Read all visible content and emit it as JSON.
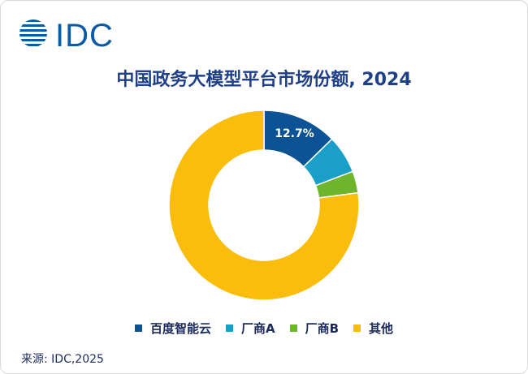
{
  "header": {
    "logo_text": "IDC"
  },
  "chart_data": {
    "type": "pie",
    "style": "donut",
    "title": "中国政务大模型平台市场份额, 2024",
    "categories": [
      "百度智能云",
      "厂商A",
      "厂商B",
      "其他"
    ],
    "values": [
      12.7,
      6.5,
      3.7,
      77.1
    ],
    "colors": [
      "#0b5394",
      "#1aa0c8",
      "#6fb52c",
      "#fbbd0b"
    ],
    "data_labels": [
      "12.7%",
      "",
      "",
      ""
    ],
    "legend_position": "bottom"
  },
  "footer": {
    "source": "来源: IDC,2025"
  }
}
